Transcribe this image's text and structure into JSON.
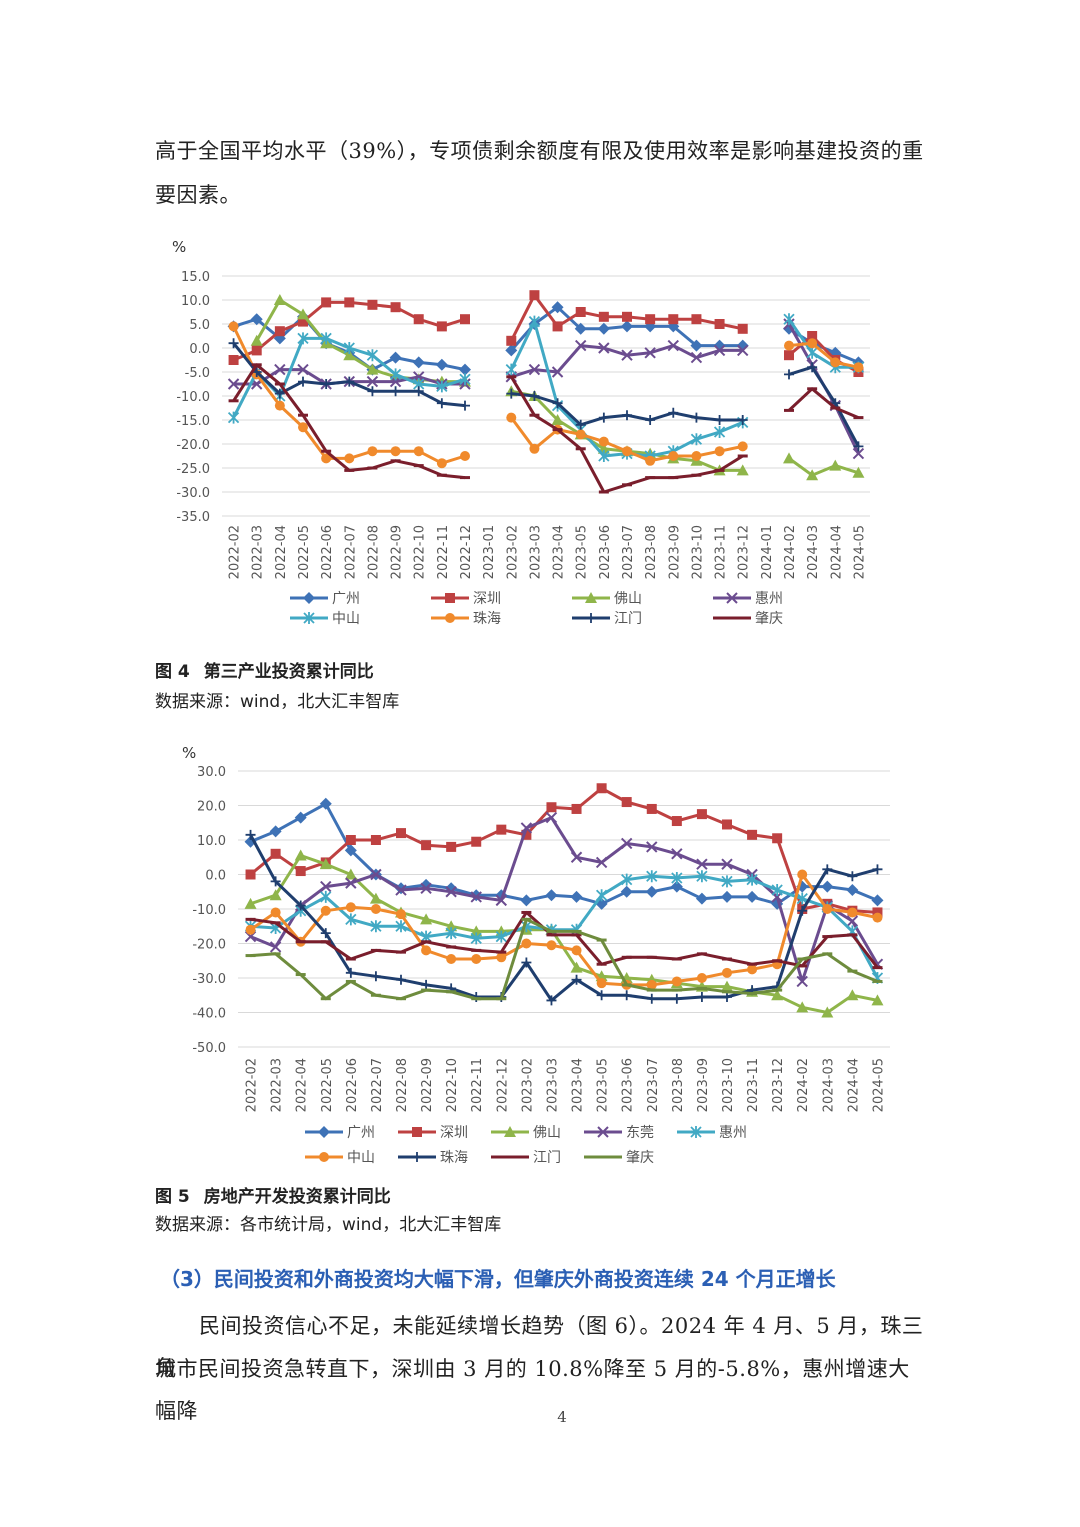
{
  "intro_lines": [
    "高于全国平均水平（39%），专项债剩余额度有限及使用效率是影响基建投资的重",
    "要因素。"
  ],
  "figure4": {
    "caption_num": "图 4",
    "caption_text": "第三产业投资累计同比",
    "source": "数据来源：wind，北大汇丰智库"
  },
  "figure5": {
    "caption_num": "图 5",
    "caption_text": "房地产开发投资累计同比",
    "source": "数据来源：各市统计局，wind，北大汇丰智库"
  },
  "section_heading": "（3）民间投资和外商投资均大幅下滑，但肇庆外商投资连续 24 个月正增长",
  "body_lines": [
    "民间投资信心不足，未能延续增长趋势（图 6）。2024 年 4 月、5 月，珠三角",
    "城市民间投资急转直下，深圳由 3 月的 10.8%降至 5 月的-5.8%，惠州增速大幅降"
  ],
  "page_number": "4",
  "chart_data": [
    {
      "type": "line",
      "ylabel": "%",
      "ylim": [
        -35,
        15
      ],
      "yticks": [
        "15.0",
        "10.0",
        "5.0",
        "0.0",
        "-5.0",
        "-10.0",
        "-15.0",
        "-20.0",
        "-25.0",
        "-30.0",
        "-35.0"
      ],
      "grid": true,
      "legend_position": "bottom",
      "x": [
        "2022-02",
        "2022-03",
        "2022-04",
        "2022-05",
        "2022-06",
        "2022-07",
        "2022-08",
        "2022-09",
        "2022-10",
        "2022-11",
        "2022-12",
        "2023-01",
        "2023-02",
        "2023-03",
        "2023-04",
        "2023-05",
        "2023-06",
        "2023-07",
        "2023-08",
        "2023-09",
        "2023-10",
        "2023-11",
        "2023-12",
        "2024-01",
        "2024-02",
        "2024-03",
        "2024-04",
        "2024-05"
      ],
      "series": [
        {
          "name": "广州",
          "color": "#3e72b6",
          "marker": "diamond",
          "values": [
            4.5,
            6,
            2,
            6.5,
            1,
            -1,
            -4.5,
            -2,
            -3,
            -3.5,
            -4.5,
            null,
            -0.5,
            5,
            8.5,
            4,
            4,
            4.5,
            4.5,
            4.5,
            0.5,
            0.5,
            0.5,
            null,
            4,
            1,
            -1,
            -3
          ]
        },
        {
          "name": "深圳",
          "color": "#be4141",
          "marker": "square",
          "values": [
            -2.5,
            -0.5,
            3.5,
            5.5,
            9.5,
            9.5,
            9,
            8.5,
            6,
            4.5,
            6,
            null,
            1.5,
            11,
            4.5,
            7.5,
            6.5,
            6.5,
            6,
            6,
            6,
            5,
            4,
            null,
            -1.5,
            2.5,
            -2.5,
            -5
          ]
        },
        {
          "name": "佛山",
          "color": "#8fb54a",
          "marker": "triangle",
          "values": [
            null,
            1.5,
            10,
            7,
            1,
            -1.5,
            -4.5,
            -6,
            -6.5,
            -7,
            -7,
            null,
            -9,
            -10,
            -15,
            -18,
            -21,
            -21.5,
            -22,
            -23,
            -23.5,
            -25.5,
            -25.5,
            null,
            -23,
            -26.5,
            -24.5,
            -26
          ]
        },
        {
          "name": "惠州",
          "color": "#6b4c8f",
          "marker": "x",
          "values": [
            -7.5,
            -7.5,
            -4.5,
            -4.5,
            -7.5,
            -7,
            -7,
            -7,
            -6,
            -7.5,
            -7.5,
            null,
            -6,
            -4.5,
            -5,
            0.5,
            0,
            -1.5,
            -1,
            0.5,
            -2,
            -0.5,
            -0.5,
            null,
            5,
            -3.5,
            -12,
            -22
          ]
        },
        {
          "name": "中山",
          "color": "#41a9c4",
          "marker": "star",
          "values": [
            -14.5,
            -5,
            -10,
            2,
            2,
            0,
            -1.5,
            -5.5,
            -7.5,
            -8,
            -6.5,
            null,
            -4.5,
            5.5,
            -12,
            -17,
            -22.5,
            -22,
            -22.5,
            -21.5,
            -19,
            -17.5,
            -15.5,
            null,
            6,
            -1,
            -4,
            -4
          ]
        },
        {
          "name": "珠海",
          "color": "#f08a2c",
          "marker": "circle",
          "values": [
            4.5,
            -5.5,
            -12,
            -16.5,
            -23,
            -23,
            -21.5,
            -21.5,
            -21.5,
            -24,
            -22.5,
            null,
            -14.5,
            -21,
            -17,
            -18,
            -19.5,
            -21.5,
            -23.5,
            -22.5,
            -22.5,
            -21.5,
            -20.5,
            null,
            0.5,
            1,
            -3,
            -4
          ]
        },
        {
          "name": "江门",
          "color": "#1f3e6e",
          "marker": "plus",
          "values": [
            1,
            -5,
            -9.5,
            -7,
            -7.5,
            -7,
            -9,
            -9,
            -9,
            -11.5,
            -12,
            null,
            -9.5,
            -10,
            -11.5,
            -16,
            -14.5,
            -14,
            -15,
            -13.5,
            -14.5,
            -15,
            -15,
            null,
            -5.5,
            -4,
            -11.5,
            -20.5
          ]
        },
        {
          "name": "肇庆",
          "color": "#7a1e2c",
          "marker": "dash",
          "values": [
            -11,
            -3.5,
            -7.5,
            -14,
            -21.5,
            -25.5,
            -25,
            -23.5,
            -24.5,
            -26.5,
            -27,
            null,
            -6,
            -14,
            -17,
            -21,
            -30,
            -28.5,
            -27,
            -27,
            -26.5,
            -25.5,
            -22.5,
            null,
            -13,
            -8.5,
            -12.5,
            -14.5
          ]
        }
      ]
    },
    {
      "type": "line",
      "ylabel": "%",
      "ylim": [
        -50,
        30
      ],
      "yticks": [
        "30.0",
        "20.0",
        "10.0",
        "0.0",
        "-10.0",
        "-20.0",
        "-30.0",
        "-40.0",
        "-50.0"
      ],
      "grid": true,
      "legend_position": "bottom",
      "x": [
        "2022-02",
        "2022-03",
        "2022-04",
        "2022-05",
        "2022-06",
        "2022-07",
        "2022-08",
        "2022-09",
        "2022-10",
        "2022-11",
        "2022-12",
        "2023-02",
        "2023-03",
        "2023-04",
        "2023-05",
        "2023-06",
        "2023-07",
        "2023-08",
        "2023-09",
        "2023-10",
        "2023-11",
        "2023-12",
        "2024-02",
        "2024-03",
        "2024-04",
        "2024-05"
      ],
      "series": [
        {
          "name": "广州",
          "color": "#3e72b6",
          "marker": "diamond",
          "values": [
            9.5,
            12.5,
            16.5,
            20.5,
            7,
            0,
            -4,
            -3,
            -4,
            -6,
            -6,
            -7.5,
            -6,
            -6.5,
            -8.5,
            -5,
            -5,
            -3.5,
            -7,
            -6.5,
            -6.5,
            -8.5,
            -3.5,
            -3.5,
            -4.5,
            -7.5
          ]
        },
        {
          "name": "深圳",
          "color": "#be4141",
          "marker": "square",
          "values": [
            0,
            6,
            1,
            3.5,
            10,
            10,
            12,
            8.5,
            8,
            9.5,
            13,
            11.5,
            19.5,
            19,
            25,
            21,
            19,
            15.5,
            17.5,
            14.5,
            11.5,
            10.5,
            -10,
            -8.5,
            -10.5,
            -11
          ]
        },
        {
          "name": "佛山",
          "color": "#8fb54a",
          "marker": "triangle",
          "values": [
            -8.5,
            -6,
            5.5,
            3,
            0,
            -7,
            -11,
            -13,
            -15,
            -16.5,
            -16.5,
            -16,
            -16,
            -27,
            -29.5,
            -30,
            -30.5,
            -31.5,
            -32.5,
            -32.5,
            -34,
            -35,
            -38.5,
            -40,
            -35,
            -36.5
          ]
        },
        {
          "name": "东莞",
          "color": "#6b4c8f",
          "marker": "x",
          "values": [
            -18,
            -21,
            -9,
            -3.5,
            -2.5,
            0,
            -4.5,
            -4,
            -5,
            -6.5,
            -7.5,
            13.5,
            16.5,
            5,
            3.5,
            9,
            8,
            6,
            3,
            3,
            0,
            -6.5,
            -31,
            -9,
            -13.5,
            -26
          ]
        },
        {
          "name": "惠州",
          "color": "#41a9c4",
          "marker": "star",
          "values": [
            -15,
            -15.5,
            -10.5,
            -6.5,
            -13,
            -15,
            -15,
            -18,
            -17,
            -18.5,
            -18,
            -15,
            -16,
            -16,
            -6,
            -1.5,
            -0.5,
            -1,
            -0.5,
            -2,
            -1.5,
            -4.5,
            -7,
            -9.5,
            -16.5,
            -30
          ]
        },
        {
          "name": "中山",
          "color": "#f08a2c",
          "marker": "circle",
          "values": [
            -16,
            -11,
            -19.5,
            -10.5,
            -9.5,
            -10,
            -11.5,
            -22,
            -24.5,
            -24.5,
            -24,
            -20,
            -20.5,
            -22,
            -31.5,
            -32,
            -32,
            -31,
            -30,
            -28.5,
            -27.5,
            -26,
            0,
            -10,
            -11,
            -12.5
          ]
        },
        {
          "name": "珠海",
          "color": "#1f3e6e",
          "marker": "plus",
          "values": [
            11.5,
            -2,
            -9,
            -17,
            -28.5,
            -29.5,
            -30.5,
            -32,
            -33,
            -35.5,
            -35.5,
            -25.5,
            -36.5,
            -30.5,
            -35,
            -35,
            -36,
            -36,
            -35.5,
            -35.5,
            -33.5,
            -32.5,
            -10.5,
            1.5,
            -0.5,
            1.5
          ]
        },
        {
          "name": "江门",
          "color": "#7a1e2c",
          "marker": "dash",
          "values": [
            -13,
            -14,
            -19.5,
            -19.5,
            -24.5,
            -22,
            -22.5,
            -19.5,
            -21,
            -22,
            -22.5,
            -11,
            -17.5,
            -17.5,
            -26,
            -24,
            -24,
            -24.5,
            -23,
            -24.5,
            -26,
            -25,
            -26.5,
            -18,
            -17.5,
            -27
          ]
        },
        {
          "name": "肇庆",
          "color": "#6e8c3d",
          "marker": "dash",
          "values": [
            -23.5,
            -23,
            -29,
            -36,
            -31,
            -35,
            -36,
            -33.5,
            -34,
            -36,
            -36,
            -13,
            -16.5,
            -16.5,
            -19,
            -32,
            -33.5,
            -33.5,
            -33,
            -34,
            -34.5,
            -33.5,
            -24.5,
            -23,
            -28,
            -31
          ]
        }
      ]
    }
  ]
}
